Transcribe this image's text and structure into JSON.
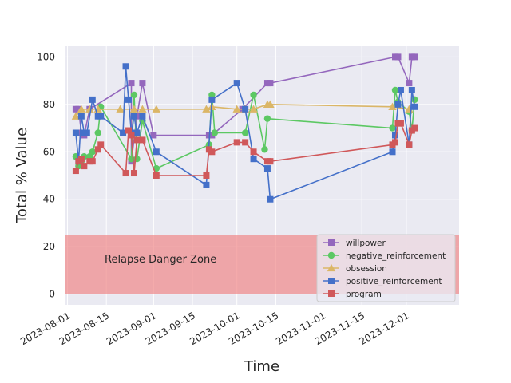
{
  "chart_data": {
    "type": "line",
    "xlabel": "Time",
    "ylabel": "Total % Value",
    "xlim": [
      "2023-07-31",
      "2023-12-20"
    ],
    "ylim": [
      -4.5,
      104.5
    ],
    "x_ticks": [
      "2023-08-01",
      "2023-08-15",
      "2023-09-01",
      "2023-09-15",
      "2023-10-01",
      "2023-10-15",
      "2023-11-01",
      "2023-11-15",
      "2023-12-01"
    ],
    "y_ticks": [
      0,
      20,
      40,
      60,
      80,
      100
    ],
    "grid": true,
    "legend_position": "lower-right",
    "band": {
      "y0": 0,
      "y1": 25,
      "label": "Relapse Danger Zone",
      "color": "#f08080"
    },
    "series": [
      {
        "name": "willpower",
        "color": "#9467bd",
        "marker": "square",
        "x": [
          "2023-08-04",
          "2023-08-05",
          "2023-08-06",
          "2023-08-07",
          "2023-08-09",
          "2023-08-24",
          "2023-08-24",
          "2023-08-26",
          "2023-08-28",
          "2023-09-01",
          "2023-09-21",
          "2023-09-22",
          "2023-10-03",
          "2023-10-12",
          "2023-10-13",
          "2023-11-27",
          "2023-11-28",
          "2023-12-02",
          "2023-12-03",
          "2023-12-04"
        ],
        "y": [
          78,
          78,
          68,
          67,
          78,
          89,
          56,
          75,
          89,
          67,
          67,
          67,
          78,
          89,
          89,
          100,
          100,
          89,
          100,
          100
        ]
      },
      {
        "name": "negative_reinforcement",
        "color": "#5cc863",
        "marker": "circle",
        "x": [
          "2023-08-04",
          "2023-08-05",
          "2023-08-06",
          "2023-08-07",
          "2023-08-09",
          "2023-08-10",
          "2023-08-12",
          "2023-08-13",
          "2023-08-24",
          "2023-08-25",
          "2023-08-26",
          "2023-08-28",
          "2023-09-02",
          "2023-09-21",
          "2023-09-22",
          "2023-09-23",
          "2023-10-04",
          "2023-10-07",
          "2023-10-11",
          "2023-10-12",
          "2023-11-26",
          "2023-11-27",
          "2023-11-28",
          "2023-12-02",
          "2023-12-03",
          "2023-12-04"
        ],
        "y": [
          58,
          54,
          56,
          58,
          58,
          60,
          68,
          79,
          57,
          84,
          57,
          73,
          53,
          63,
          84,
          68,
          68,
          84,
          61,
          74,
          70,
          86,
          81,
          77,
          69,
          82
        ]
      },
      {
        "name": "obsession",
        "color": "#dbb666",
        "marker": "triangle",
        "x": [
          "2023-08-04",
          "2023-08-06",
          "2023-08-09",
          "2023-08-12",
          "2023-08-20",
          "2023-08-25",
          "2023-08-28",
          "2023-09-02",
          "2023-09-20",
          "2023-09-22",
          "2023-10-01",
          "2023-10-04",
          "2023-10-07",
          "2023-10-12",
          "2023-10-13",
          "2023-11-26",
          "2023-12-02"
        ],
        "y": [
          75,
          78,
          78,
          78,
          78,
          78,
          78,
          78,
          78,
          79,
          78,
          78,
          78,
          80,
          80,
          79,
          78
        ]
      },
      {
        "name": "positive_reinforcement",
        "color": "#4470c9",
        "marker": "square",
        "x": [
          "2023-08-04",
          "2023-08-05",
          "2023-08-06",
          "2023-08-07",
          "2023-08-08",
          "2023-08-10",
          "2023-08-12",
          "2023-08-13",
          "2023-08-21",
          "2023-08-22",
          "2023-08-23",
          "2023-08-24",
          "2023-08-25",
          "2023-08-26",
          "2023-08-28",
          "2023-09-02",
          "2023-09-20",
          "2023-09-22",
          "2023-10-01",
          "2023-10-04",
          "2023-10-07",
          "2023-10-12",
          "2023-10-13",
          "2023-11-26",
          "2023-11-27",
          "2023-11-28",
          "2023-11-29",
          "2023-12-02",
          "2023-12-03",
          "2023-12-04"
        ],
        "y": [
          68,
          56,
          75,
          68,
          68,
          82,
          75,
          75,
          68,
          96,
          82,
          68,
          75,
          68,
          75,
          60,
          46,
          82,
          89,
          78,
          57,
          53,
          40,
          60,
          67,
          80,
          86,
          63,
          86,
          79
        ]
      },
      {
        "name": "program",
        "color": "#d0585a",
        "marker": "square",
        "x": [
          "2023-08-04",
          "2023-08-05",
          "2023-08-06",
          "2023-08-07",
          "2023-08-09",
          "2023-08-10",
          "2023-08-12",
          "2023-08-13",
          "2023-08-22",
          "2023-08-23",
          "2023-08-24",
          "2023-08-25",
          "2023-08-26",
          "2023-08-28",
          "2023-09-02",
          "2023-09-20",
          "2023-09-21",
          "2023-09-22",
          "2023-10-01",
          "2023-10-04",
          "2023-10-07",
          "2023-10-12",
          "2023-10-13",
          "2023-11-26",
          "2023-11-27",
          "2023-11-28",
          "2023-11-29",
          "2023-12-02",
          "2023-12-03",
          "2023-12-04"
        ],
        "y": [
          52,
          56,
          57,
          54,
          56,
          56,
          61,
          63,
          51,
          69,
          67,
          51,
          65,
          65,
          50,
          50,
          61,
          60,
          64,
          64,
          60,
          56,
          56,
          63,
          64,
          72,
          72,
          63,
          69,
          70
        ]
      }
    ]
  }
}
